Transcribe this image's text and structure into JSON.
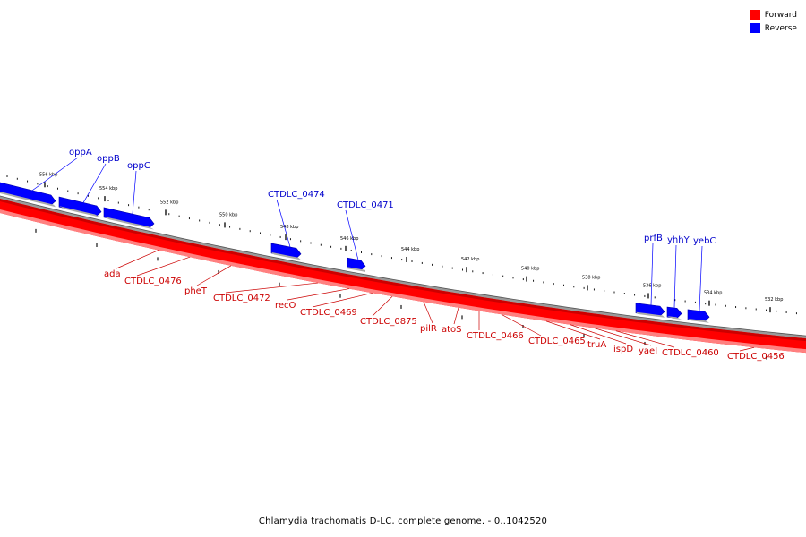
{
  "legend": [
    {
      "label": "Forward",
      "color": "#ff0000"
    },
    {
      "label": "Reverse",
      "color": "#0000ff"
    }
  ],
  "caption": "Chlamydia trachomatis D-LC, complete genome. - 0..1042520",
  "colors": {
    "forward": "#ff0000",
    "forward_dark": "#cc0000",
    "forward_light": "#ff8080",
    "reverse": "#0000ff",
    "reverse_dark": "#0000aa",
    "backbone": "#888888"
  },
  "axis_labels": [
    "556 kbp",
    "554 kbp",
    "552 kbp",
    "550 kbp",
    "548 kbp",
    "546 kbp",
    "544 kbp",
    "542 kbp",
    "540 kbp",
    "538 kbp",
    "536 kbp",
    "534 kbp",
    "532 kbp"
  ],
  "forward_genes": [
    "ada",
    "CTDLC_0476",
    "pheT",
    "CTDLC_0472",
    "recO",
    "CTDLC_0469",
    "CTDLC_0875",
    "pilR",
    "atoS",
    "CTDLC_0466",
    "CTDLC_0465",
    "truA",
    "ispD",
    "yaeI",
    "CTDLC_0460",
    "CTDLC_0456"
  ],
  "reverse_genes": [
    "oppA",
    "oppB",
    "oppC",
    "CTDLC_0474",
    "CTDLC_0471",
    "prfB",
    "yhhY",
    "yebC"
  ]
}
